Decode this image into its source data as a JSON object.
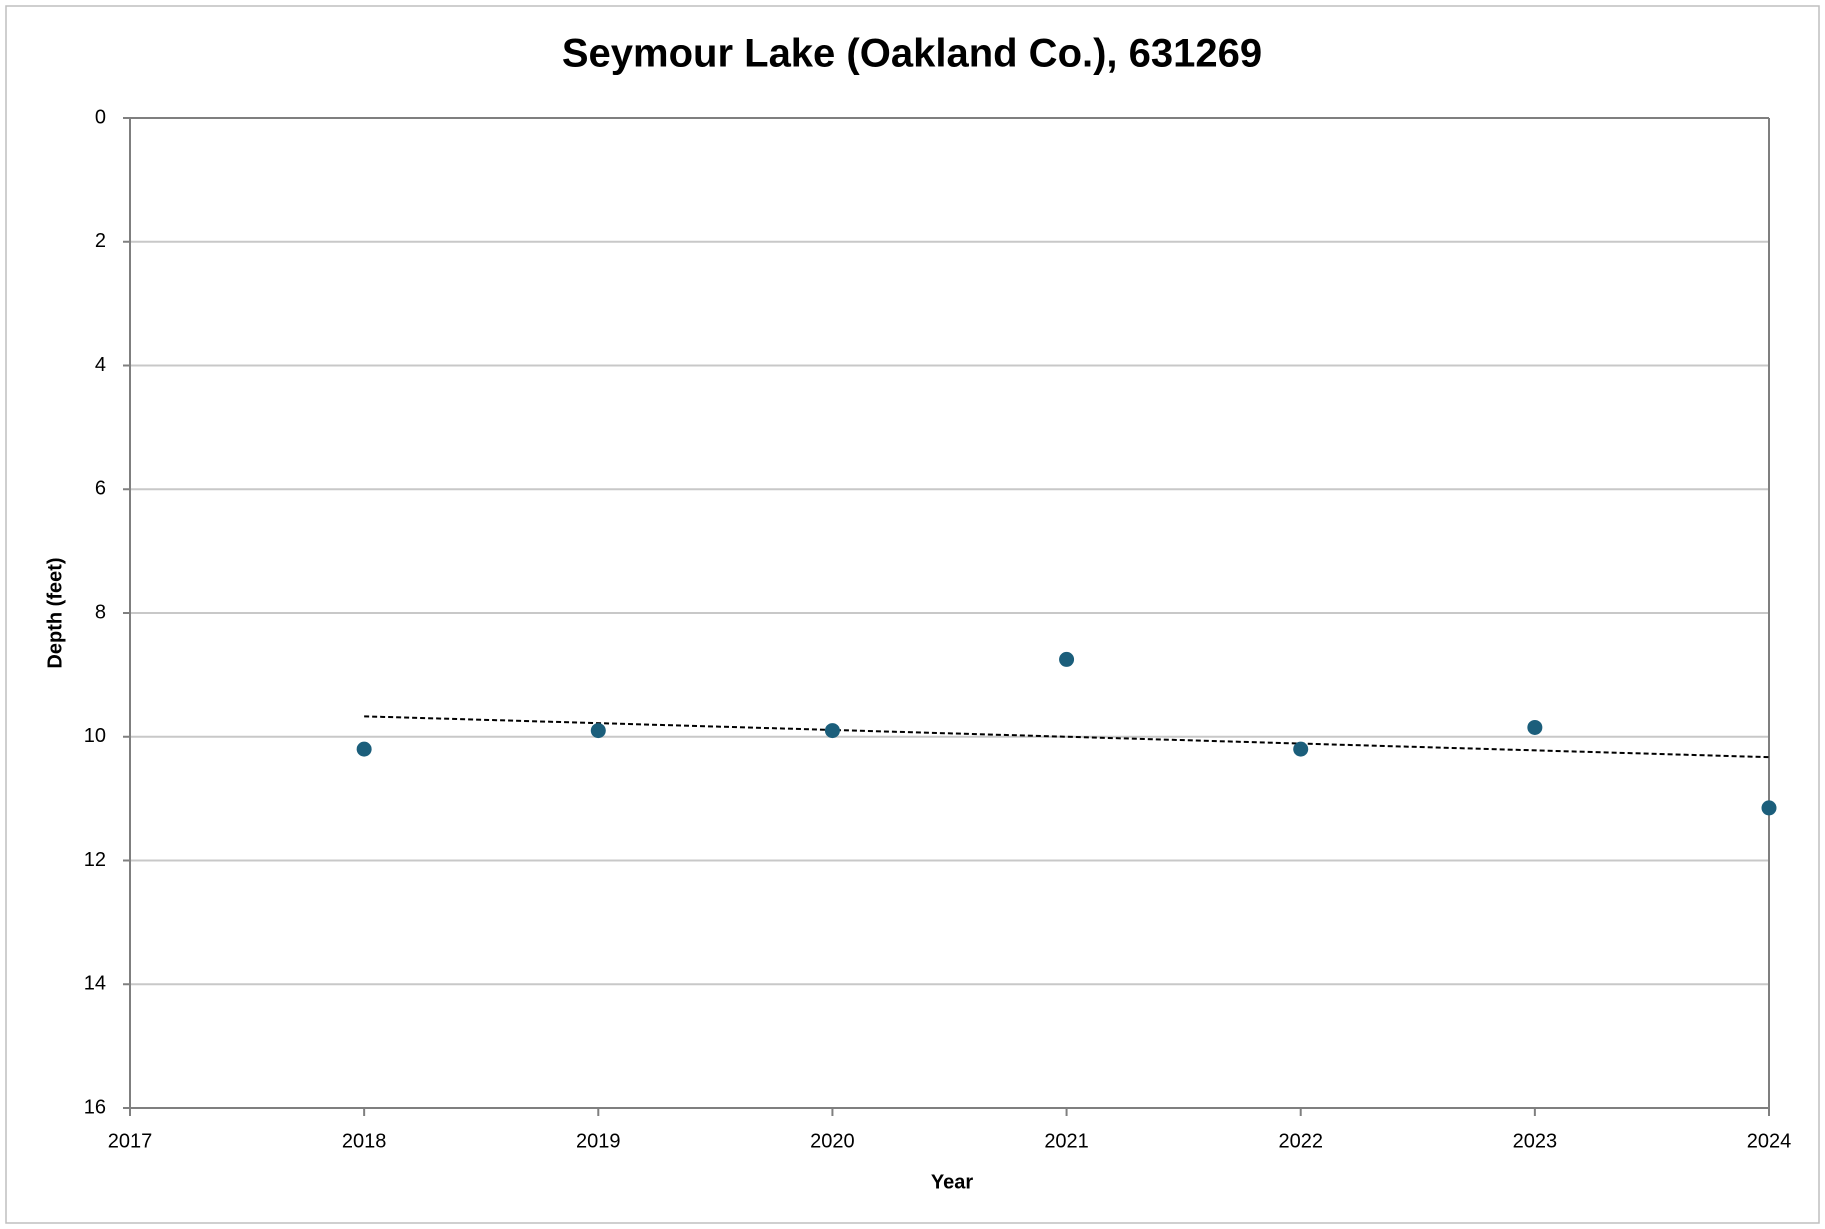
{
  "chart_data": {
    "type": "scatter",
    "title": "Seymour Lake (Oakland Co.), 631269",
    "x_label": "Year",
    "y_label": "Depth (feet)",
    "x": [
      2018,
      2019,
      2020,
      2021,
      2022,
      2023,
      2024
    ],
    "series": [
      {
        "color": "#1b5e7b",
        "values": [
          10.2,
          9.9,
          9.9,
          8.75,
          10.2,
          9.85,
          11.15
        ]
      }
    ],
    "trendline": {
      "x": [
        2018,
        2024
      ],
      "values": [
        9.67,
        10.33
      ],
      "color": "#000000"
    },
    "xlim": [
      2017,
      2024
    ],
    "xticks": [
      2017,
      2018,
      2019,
      2020,
      2021,
      2022,
      2023,
      2024
    ],
    "ylim": [
      0,
      16
    ],
    "yticks": [
      0,
      2,
      4,
      6,
      8,
      10,
      12,
      14,
      16
    ],
    "y_reversed": true,
    "grid": true
  }
}
